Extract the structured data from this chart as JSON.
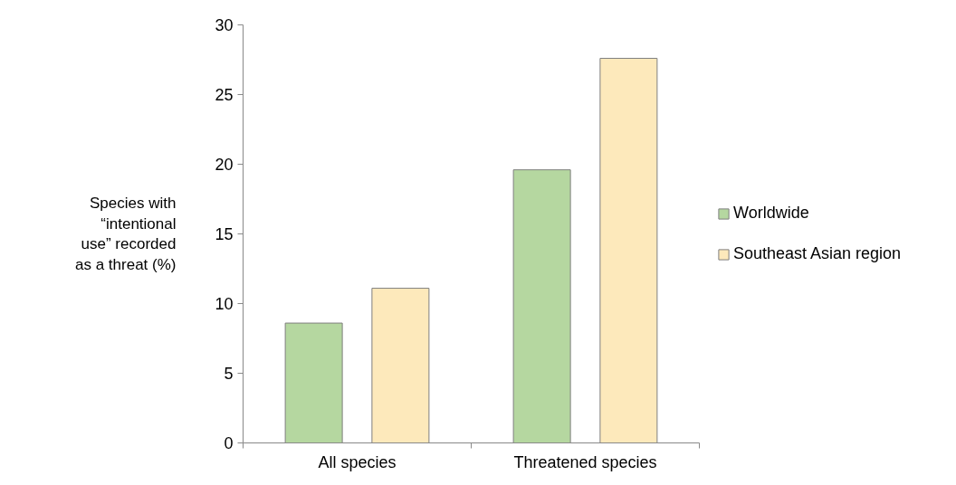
{
  "chart_data": {
    "type": "bar",
    "ylabel": "Species with “intentional use” recorded as a threat (%)",
    "categories": [
      "All species",
      "Threatened species"
    ],
    "series": [
      {
        "name": "Worldwide",
        "color": "#b5d7a0",
        "values": [
          8.6,
          19.6
        ]
      },
      {
        "name": "Southeast Asian region",
        "color": "#fde9bb",
        "values": [
          11.1,
          27.6
        ]
      }
    ],
    "ylim": [
      0,
      30
    ],
    "yticks": [
      0,
      5,
      10,
      15,
      20,
      25,
      30
    ],
    "grid": false,
    "legend": "right"
  }
}
